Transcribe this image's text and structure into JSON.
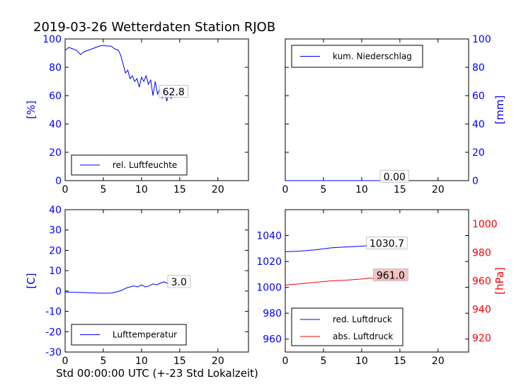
{
  "title": "2019-03-26 Wetterdaten Station RJOB",
  "footer_xlabel": "Std 00:00:00 UTC (+-23 Std Lokalzeit)",
  "colors": {
    "blue": "#0000ff",
    "red": "#ff0000",
    "black": "#000000"
  },
  "chart_data": [
    {
      "id": "humidity",
      "type": "line",
      "ylabel": "[%]",
      "ylabel_color": "#0000ff",
      "ylabel_side": "left",
      "xlim": [
        0,
        24
      ],
      "ylim": [
        0,
        100
      ],
      "xticks": [
        0,
        5,
        10,
        15,
        20
      ],
      "yticks": [
        0,
        20,
        40,
        60,
        80,
        100
      ],
      "ytick_color": "#0000ff",
      "legend_position": "lower-center",
      "series": [
        {
          "name": "rel. Luftfeuchte",
          "color": "#0000ff",
          "x": [
            0,
            0.5,
            1,
            1.5,
            2,
            2.5,
            3,
            3.5,
            4,
            4.5,
            5,
            5.5,
            6,
            6.5,
            7,
            7.3,
            7.6,
            7.9,
            8.2,
            8.5,
            8.8,
            9.1,
            9.4,
            9.7,
            10,
            10.3,
            10.6,
            10.9,
            11.2,
            11.5,
            11.8,
            12.1,
            12.4,
            12.7,
            13,
            13.3,
            13.6,
            13.9,
            14.2,
            14.5,
            14.8,
            15.1,
            15.4,
            15.7
          ],
          "y": [
            92,
            94,
            93,
            92,
            89,
            91,
            92,
            93,
            94,
            95,
            95.5,
            95,
            95,
            93,
            92,
            88,
            82,
            76,
            78,
            72,
            74,
            70,
            72,
            66,
            73,
            70,
            74,
            68,
            71,
            60,
            70,
            61,
            65,
            58,
            64,
            56,
            62,
            58,
            63,
            59,
            62,
            60,
            63,
            62.8
          ]
        }
      ],
      "annotation": "62.8",
      "annotation_value": {
        "x": 14.2,
        "y": 62.8
      }
    },
    {
      "id": "precip",
      "type": "line",
      "ylabel": "[mm]",
      "ylabel_color": "#0000ff",
      "ylabel_side": "right",
      "xlim": [
        0,
        24
      ],
      "ylim": [
        0,
        100
      ],
      "xticks": [
        0,
        5,
        10,
        15,
        20
      ],
      "yticks": [
        0,
        20,
        40,
        60,
        80,
        100
      ],
      "ytick_color": "#0000ff",
      "legend_position": "upper-left",
      "series": [
        {
          "name": "kum. Niederschlag",
          "color": "#0000ff",
          "x": [
            0,
            4,
            8,
            12,
            15.7
          ],
          "y": [
            0,
            0,
            0,
            0,
            0
          ]
        }
      ],
      "annotation": "0.00",
      "annotation_value": {
        "x": 14.3,
        "y": 2.8
      }
    },
    {
      "id": "temperature",
      "type": "line",
      "ylabel": "[C]",
      "ylabel_color": "#0000ff",
      "ylabel_side": "left",
      "xlim": [
        0,
        24
      ],
      "ylim": [
        -30,
        40
      ],
      "xticks": [
        0,
        5,
        10,
        15,
        20
      ],
      "yticks": [
        -30,
        -20,
        -10,
        0,
        10,
        20,
        30,
        40
      ],
      "ytick_color": "#0000ff",
      "legend_position": "lower-center",
      "series": [
        {
          "name": "Lufttemperatur",
          "color": "#0000ff",
          "x": [
            0,
            1,
            2,
            3,
            4,
            5,
            6,
            6.5,
            7,
            7.5,
            8,
            8.5,
            9,
            9.5,
            10,
            10.5,
            11,
            11.5,
            12,
            12.5,
            13,
            13.5,
            14,
            14.5,
            15,
            15.5,
            15.7
          ],
          "y": [
            -0.5,
            -0.6,
            -0.7,
            -0.8,
            -1.0,
            -1.1,
            -1.0,
            -0.6,
            -0.2,
            0.5,
            1.5,
            2.0,
            2.5,
            2.0,
            3.0,
            2.0,
            2.5,
            3.5,
            3.0,
            4.0,
            4.5,
            3.5,
            5.0,
            4.0,
            4.5,
            3.5,
            3.0
          ]
        }
      ],
      "annotation": "3.0",
      "annotation_value": {
        "x": 14.9,
        "y": 4.5
      }
    },
    {
      "id": "pressure",
      "type": "line",
      "ylabel": "[hPa]",
      "ylabel_color": "#ff0000",
      "ylabel_side": "right",
      "xlim": [
        0,
        24
      ],
      "ylim": [
        950,
        1060
      ],
      "y2lim": [
        910,
        1010
      ],
      "xticks": [
        0,
        5,
        10,
        15,
        20
      ],
      "yticks": [
        960,
        980,
        1000,
        1020,
        1040
      ],
      "ytick_color": "#0000ff",
      "y2ticks": [
        920,
        940,
        960,
        980,
        1000
      ],
      "y2tick_color": "#ff0000",
      "legend_position": "lower-left",
      "series": [
        {
          "name": "red. Luftdruck",
          "color": "#0000ff",
          "axis": "left",
          "x": [
            0,
            2,
            4,
            6,
            8,
            10,
            11,
            12,
            13,
            14,
            15,
            15.7
          ],
          "y": [
            1027.5,
            1028,
            1029,
            1030.5,
            1031.2,
            1031.8,
            1032.2,
            1031.5,
            1032,
            1031.2,
            1030.8,
            1030.7
          ]
        },
        {
          "name": "abs. Luftdruck",
          "color": "#ff0000",
          "axis": "right",
          "x": [
            0,
            2,
            4,
            6,
            8,
            10,
            11,
            12,
            13,
            14,
            15,
            15.7
          ],
          "y": [
            957,
            958,
            959,
            960,
            960.5,
            961.3,
            962,
            961.2,
            961.5,
            961,
            961.2,
            961.0
          ]
        }
      ],
      "annotation": "1030.7",
      "annotation2": "961.0",
      "annotation_value": {
        "x": 13.3,
        "y": 1034
      },
      "annotation2_value": {
        "x": 13.8,
        "y": 964
      }
    }
  ]
}
